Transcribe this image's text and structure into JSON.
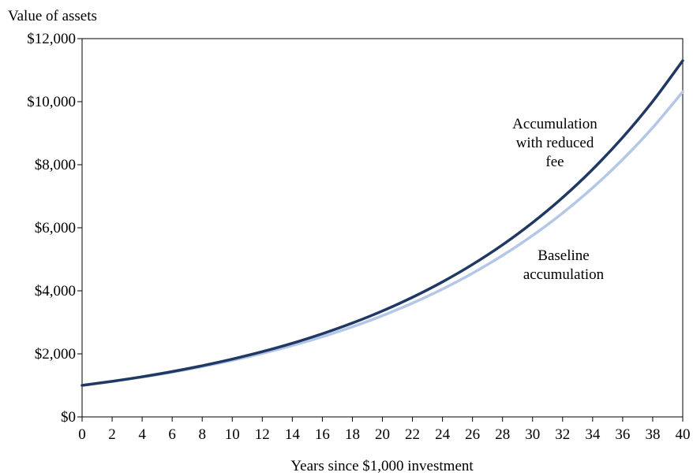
{
  "chart_data": {
    "type": "line",
    "title": "",
    "ylabel": "Value of assets",
    "xlabel": "Years since $1,000 investment",
    "xlim": [
      0,
      40
    ],
    "ylim": [
      0,
      12000
    ],
    "grid": false,
    "x_ticks": [
      0,
      2,
      4,
      6,
      8,
      10,
      12,
      14,
      16,
      18,
      20,
      22,
      24,
      26,
      28,
      30,
      32,
      34,
      36,
      38,
      40
    ],
    "x_tick_labels": [
      "0",
      "2",
      "4",
      "6",
      "8",
      "10",
      "12",
      "14",
      "16",
      "18",
      "20",
      "22",
      "24",
      "26",
      "28",
      "30",
      "32",
      "34",
      "36",
      "38",
      "40"
    ],
    "y_ticks": [
      0,
      2000,
      4000,
      6000,
      8000,
      10000,
      12000
    ],
    "y_tick_labels": [
      "$0",
      "$2,000",
      "$4,000",
      "$6,000",
      "$8,000",
      "$10,000",
      "$12,000"
    ],
    "series": [
      {
        "name": "Accumulation with reduced fee",
        "label_lines": [
          "Accumulation",
          "with reduced",
          "fee"
        ],
        "color": "#1f3864",
        "x": [
          0,
          2,
          4,
          6,
          8,
          10,
          12,
          14,
          16,
          18,
          20,
          22,
          24,
          26,
          28,
          30,
          32,
          34,
          36,
          38,
          40
        ],
        "values": [
          1000,
          1129,
          1274,
          1438,
          1624,
          1833,
          2069,
          2336,
          2637,
          2977,
          3361,
          3794,
          4283,
          4836,
          5459,
          6163,
          6957,
          7854,
          8866,
          10009,
          11300
        ]
      },
      {
        "name": "Baseline accumulation",
        "label_lines": [
          "Baseline",
          "accumulation"
        ],
        "color": "#b4c7e7",
        "x": [
          0,
          2,
          4,
          6,
          8,
          10,
          12,
          14,
          16,
          18,
          20,
          22,
          24,
          26,
          28,
          30,
          32,
          34,
          36,
          38,
          40
        ],
        "values": [
          1000,
          1124,
          1263,
          1419,
          1595,
          1792,
          2014,
          2263,
          2543,
          2858,
          3211,
          3609,
          4055,
          4557,
          5121,
          5755,
          6467,
          7267,
          8166,
          9176,
          10312
        ]
      }
    ]
  }
}
